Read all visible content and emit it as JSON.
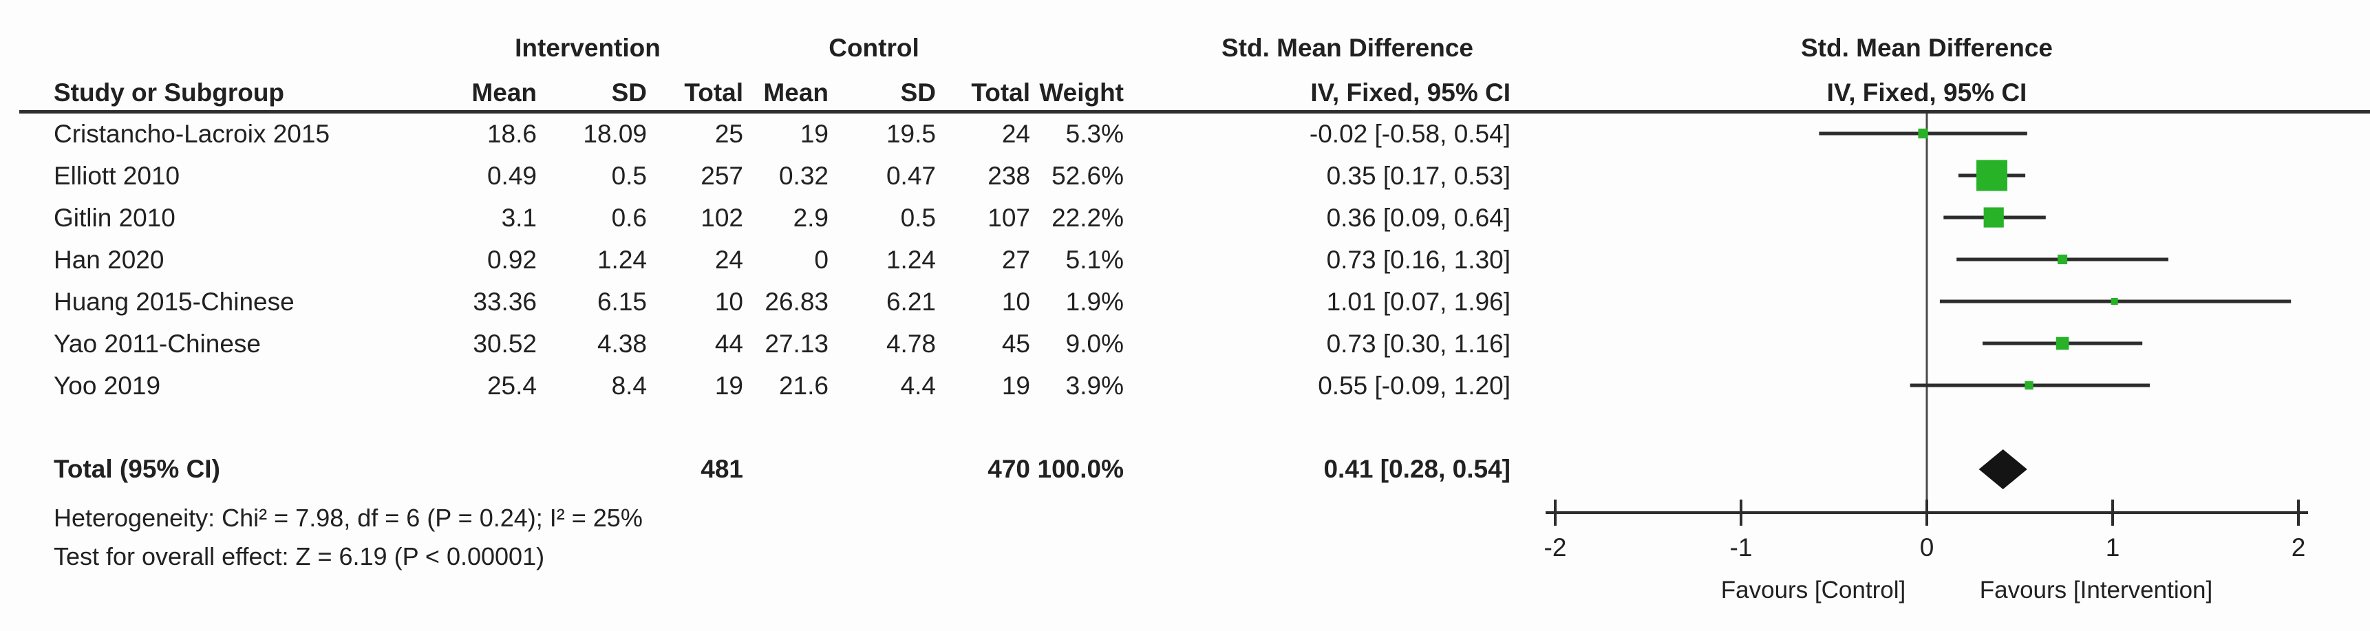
{
  "table": {
    "study_col_header": "Study or Subgroup",
    "group_headers": {
      "intervention": "Intervention",
      "control": "Control"
    },
    "smd_header": "Std. Mean Difference",
    "model_header": "IV, Fixed, 95% CI",
    "col_headers": {
      "mean": "Mean",
      "sd": "SD",
      "total": "Total",
      "weight": "Weight"
    },
    "studies": [
      {
        "name": "Cristancho-Lacroix 2015",
        "i_mean": "18.6",
        "i_sd": "18.09",
        "i_total": "25",
        "c_mean": "19",
        "c_sd": "19.5",
        "c_total": "24",
        "weight": "5.3%",
        "smd_ci": "-0.02 [-0.58, 0.54]"
      },
      {
        "name": "Elliott 2010",
        "i_mean": "0.49",
        "i_sd": "0.5",
        "i_total": "257",
        "c_mean": "0.32",
        "c_sd": "0.47",
        "c_total": "238",
        "weight": "52.6%",
        "smd_ci": "0.35 [0.17, 0.53]"
      },
      {
        "name": "Gitlin 2010",
        "i_mean": "3.1",
        "i_sd": "0.6",
        "i_total": "102",
        "c_mean": "2.9",
        "c_sd": "0.5",
        "c_total": "107",
        "weight": "22.2%",
        "smd_ci": "0.36 [0.09, 0.64]"
      },
      {
        "name": "Han 2020",
        "i_mean": "0.92",
        "i_sd": "1.24",
        "i_total": "24",
        "c_mean": "0",
        "c_sd": "1.24",
        "c_total": "27",
        "weight": "5.1%",
        "smd_ci": "0.73 [0.16, 1.30]"
      },
      {
        "name": "Huang 2015-Chinese",
        "i_mean": "33.36",
        "i_sd": "6.15",
        "i_total": "10",
        "c_mean": "26.83",
        "c_sd": "6.21",
        "c_total": "10",
        "weight": "1.9%",
        "smd_ci": "1.01 [0.07, 1.96]"
      },
      {
        "name": "Yao 2011-Chinese",
        "i_mean": "30.52",
        "i_sd": "4.38",
        "i_total": "44",
        "c_mean": "27.13",
        "c_sd": "4.78",
        "c_total": "45",
        "weight": "9.0%",
        "smd_ci": "0.73 [0.30, 1.16]"
      },
      {
        "name": "Yoo 2019",
        "i_mean": "25.4",
        "i_sd": "8.4",
        "i_total": "19",
        "c_mean": "21.6",
        "c_sd": "4.4",
        "c_total": "19",
        "weight": "3.9%",
        "smd_ci": "0.55 [-0.09, 1.20]"
      }
    ],
    "total_row": {
      "label": "Total (95% CI)",
      "i_total": "481",
      "c_total": "470",
      "weight": "100.0%",
      "smd_ci": "0.41 [0.28, 0.54]"
    },
    "heterogeneity": "Heterogeneity: Chi² = 7.98, df = 6 (P = 0.24); I² = 25%",
    "overall_effect": "Test for overall effect: Z = 6.19 (P < 0.00001)"
  },
  "chart_data": {
    "type": "forest",
    "effect_measure": "Std. Mean Difference",
    "model": "IV, Fixed, 95% CI",
    "xlim": [
      -2,
      2
    ],
    "ticks": [
      "-2",
      "-1",
      "0",
      "1",
      "2"
    ],
    "tick_values": [
      -2,
      -1,
      0,
      1,
      2
    ],
    "favours_left": "Favours [Control]",
    "favours_right": "Favours [Intervention]",
    "studies": [
      {
        "name": "Cristancho-Lacroix 2015",
        "smd": -0.02,
        "ci_low": -0.58,
        "ci_high": 0.54,
        "weight": 5.3
      },
      {
        "name": "Elliott 2010",
        "smd": 0.35,
        "ci_low": 0.17,
        "ci_high": 0.53,
        "weight": 52.6
      },
      {
        "name": "Gitlin 2010",
        "smd": 0.36,
        "ci_low": 0.09,
        "ci_high": 0.64,
        "weight": 22.2
      },
      {
        "name": "Han 2020",
        "smd": 0.73,
        "ci_low": 0.16,
        "ci_high": 1.3,
        "weight": 5.1
      },
      {
        "name": "Huang 2015-Chinese",
        "smd": 1.01,
        "ci_low": 0.07,
        "ci_high": 1.96,
        "weight": 1.9
      },
      {
        "name": "Yao 2011-Chinese",
        "smd": 0.73,
        "ci_low": 0.3,
        "ci_high": 1.16,
        "weight": 9.0
      },
      {
        "name": "Yoo 2019",
        "smd": 0.55,
        "ci_low": -0.09,
        "ci_high": 1.2,
        "weight": 3.9
      }
    ],
    "total": {
      "label": "Total (95% CI)",
      "smd": 0.41,
      "ci_low": 0.28,
      "ci_high": 0.54
    },
    "marker_color": "#28B228",
    "diamond_color": "#141414",
    "line_color": "#2d2d2d"
  }
}
